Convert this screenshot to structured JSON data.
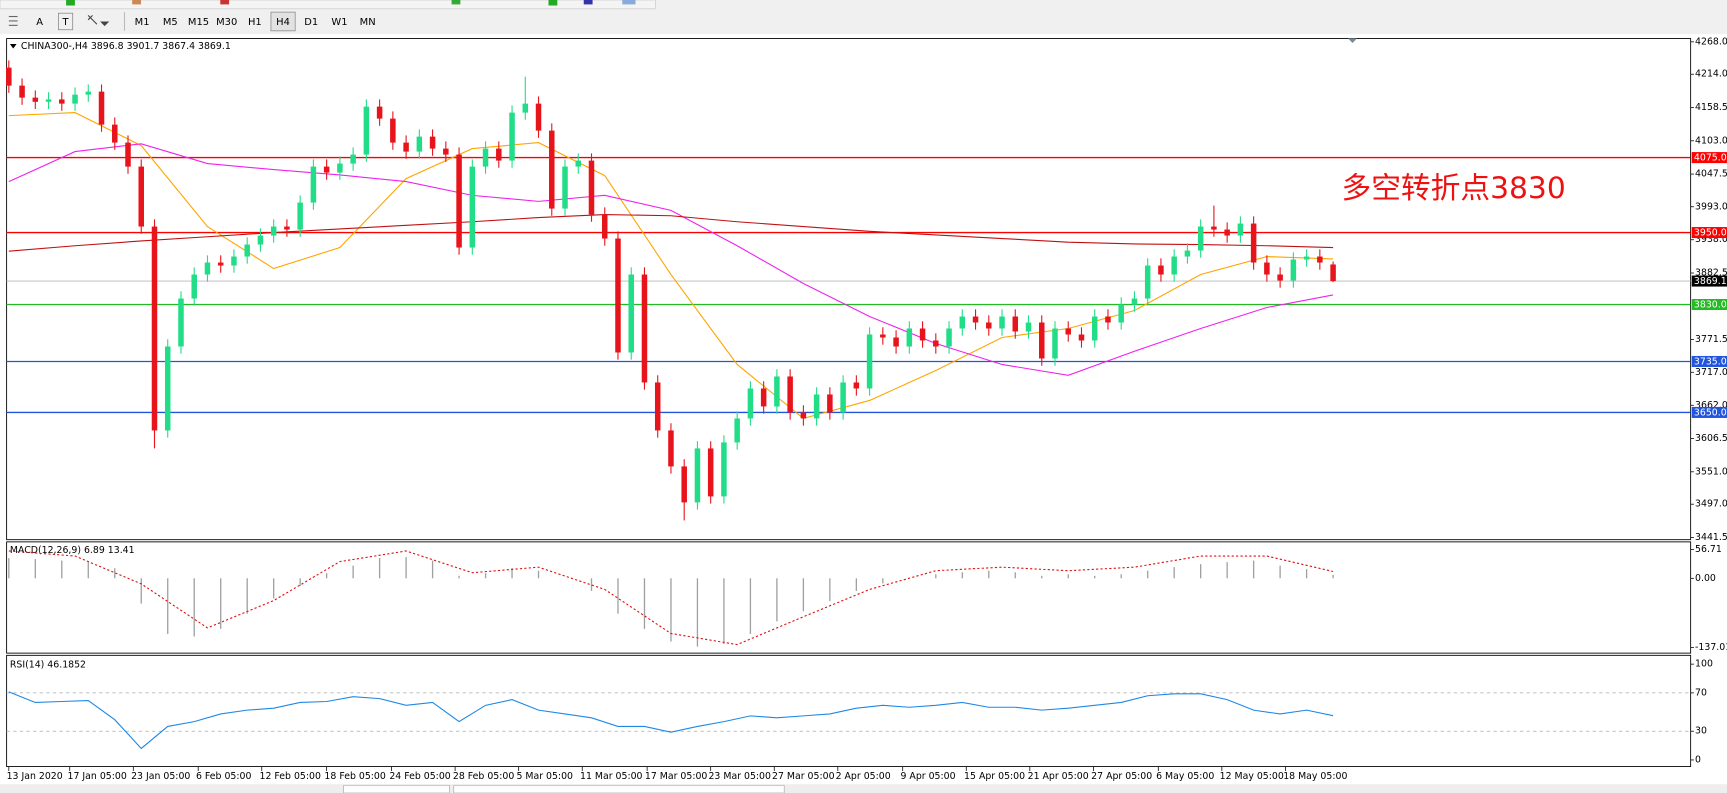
{
  "toolbar": {
    "tools": [
      "A",
      "T"
    ],
    "timeframes": [
      "M1",
      "M5",
      "M15",
      "M30",
      "H1",
      "H4",
      "D1",
      "W1",
      "MN"
    ],
    "active": "H4"
  },
  "chart_data": [
    {
      "type": "candlestick",
      "title": "CHINA300-,H4  3896.8 3901.7 3867.4 3869.1",
      "annotation": "多空转折点3830",
      "up_color": "#22dd88",
      "down_color": "#e8141c",
      "open": [
        4225,
        4195,
        4175,
        4168,
        4172,
        4165,
        4180,
        4185,
        4130,
        4100,
        4060,
        3960,
        3620,
        3760,
        3840,
        3880,
        3900,
        3895,
        3910,
        3930,
        3945,
        3960,
        3955,
        4000,
        4060,
        4050,
        4065,
        4080,
        4160,
        4140,
        4100,
        4085,
        4110,
        4090,
        4080,
        3925,
        4060,
        4090,
        4070,
        4150,
        4165,
        4120,
        3990,
        4060,
        4070,
        3980,
        3940,
        3750,
        3880,
        3700,
        3620,
        3560,
        3500,
        3590,
        3510,
        3600,
        3640,
        3690,
        3660,
        3710,
        3650,
        3640,
        3680,
        3650,
        3700,
        3690,
        3780,
        3775,
        3760,
        3790,
        3770,
        3760,
        3790,
        3810,
        3800,
        3790,
        3810,
        3785,
        3800,
        3740,
        3790,
        3780,
        3770,
        3810,
        3800,
        3830,
        3840,
        3895,
        3880,
        3910,
        3920,
        3960,
        3955,
        3945,
        3965,
        3900,
        3880,
        3870,
        3905,
        3910,
        3896.8
      ],
      "high": [
        4237,
        4207,
        4187,
        4184,
        4184,
        4192,
        4197,
        4197,
        4142,
        4112,
        4072,
        3972,
        3772,
        3852,
        3892,
        3912,
        3912,
        3922,
        3942,
        3957,
        3972,
        3972,
        4012,
        4072,
        4072,
        4077,
        4092,
        4172,
        4172,
        4152,
        4112,
        4122,
        4122,
        4102,
        4092,
        4072,
        4102,
        4102,
        4162,
        4210,
        4177,
        4132,
        4072,
        4082,
        4082,
        3992,
        3952,
        3892,
        3892,
        3712,
        3632,
        3572,
        3602,
        3602,
        3612,
        3652,
        3702,
        3702,
        3722,
        3722,
        3662,
        3692,
        3692,
        3712,
        3712,
        3792,
        3792,
        3787,
        3802,
        3802,
        3782,
        3802,
        3822,
        3822,
        3812,
        3822,
        3822,
        3812,
        3812,
        3802,
        3802,
        3792,
        3822,
        3822,
        3842,
        3852,
        3907,
        3907,
        3922,
        3932,
        3972,
        3995,
        3967,
        3977,
        3977,
        3912,
        3892,
        3917,
        3922,
        3922,
        3901.7
      ],
      "low": [
        4183,
        4163,
        4156,
        4156,
        4153,
        4153,
        4168,
        4118,
        4088,
        4048,
        3948,
        3590,
        3608,
        3748,
        3828,
        3868,
        3883,
        3883,
        3898,
        3918,
        3933,
        3943,
        3943,
        3988,
        4038,
        4038,
        4053,
        4068,
        4128,
        4088,
        4073,
        4073,
        4078,
        4068,
        3913,
        3913,
        4048,
        4058,
        4058,
        4138,
        4108,
        3978,
        3978,
        4048,
        3968,
        3928,
        3738,
        3738,
        3688,
        3608,
        3548,
        3470,
        3488,
        3498,
        3498,
        3588,
        3628,
        3648,
        3648,
        3638,
        3628,
        3628,
        3638,
        3638,
        3678,
        3678,
        3763,
        3748,
        3748,
        3758,
        3748,
        3748,
        3778,
        3788,
        3778,
        3778,
        3773,
        3773,
        3728,
        3728,
        3768,
        3758,
        3758,
        3788,
        3788,
        3818,
        3828,
        3868,
        3868,
        3898,
        3908,
        3943,
        3933,
        3933,
        3888,
        3868,
        3858,
        3858,
        3893,
        3888,
        3867.4
      ],
      "close": [
        4195,
        4175,
        4168,
        4172,
        4165,
        4180,
        4185,
        4130,
        4100,
        4060,
        3960,
        3620,
        3760,
        3840,
        3880,
        3900,
        3895,
        3910,
        3930,
        3945,
        3960,
        3955,
        4000,
        4060,
        4050,
        4065,
        4080,
        4160,
        4140,
        4100,
        4085,
        4110,
        4090,
        4080,
        3925,
        4060,
        4090,
        4070,
        4150,
        4165,
        4120,
        3990,
        4060,
        4070,
        3980,
        3940,
        3750,
        3880,
        3700,
        3620,
        3560,
        3500,
        3590,
        3510,
        3600,
        3640,
        3690,
        3660,
        3710,
        3650,
        3640,
        3680,
        3650,
        3700,
        3690,
        3780,
        3775,
        3760,
        3790,
        3770,
        3760,
        3790,
        3810,
        3800,
        3790,
        3810,
        3785,
        3800,
        3740,
        3790,
        3780,
        3770,
        3810,
        3800,
        3830,
        3840,
        3895,
        3880,
        3910,
        3920,
        3960,
        3955,
        3945,
        3965,
        3900,
        3880,
        3870,
        3905,
        3910,
        3900,
        3869.1
      ],
      "moving_averages": [
        {
          "color": "#ffa500",
          "x": [
            0,
            5,
            10,
            15,
            20,
            25,
            30,
            35,
            40,
            45,
            50,
            55,
            60,
            65,
            70,
            75,
            80,
            85,
            90,
            95,
            100
          ],
          "values": [
            4145,
            4150,
            4095,
            3960,
            3890,
            3925,
            4040,
            4090,
            4100,
            4045,
            3880,
            3730,
            3640,
            3670,
            3720,
            3775,
            3790,
            3820,
            3880,
            3910,
            3906
          ]
        },
        {
          "color": "#ee22ee",
          "x": [
            0,
            5,
            10,
            15,
            20,
            25,
            30,
            35,
            40,
            45,
            50,
            55,
            60,
            65,
            70,
            75,
            80,
            85,
            90,
            95,
            100
          ],
          "values": [
            4035,
            4085,
            4098,
            4065,
            4055,
            4046,
            4035,
            4012,
            4002,
            4012,
            3987,
            3928,
            3865,
            3810,
            3765,
            3730,
            3712,
            3752,
            3790,
            3825,
            3846
          ]
        },
        {
          "color": "#c01010",
          "x": [
            0,
            5,
            10,
            15,
            20,
            25,
            30,
            35,
            40,
            45,
            50,
            55,
            60,
            65,
            70,
            75,
            80,
            85,
            90,
            95,
            100
          ],
          "values": [
            3919,
            3928,
            3936,
            3943,
            3950,
            3956,
            3962,
            3968,
            3975,
            3980,
            3978,
            3968,
            3960,
            3952,
            3946,
            3940,
            3934,
            3931,
            3930,
            3928,
            3925
          ]
        }
      ],
      "levels": [
        {
          "value": 4075,
          "label": "4075.0",
          "color": "#ff0000"
        },
        {
          "value": 3950,
          "label": "3950.0",
          "color": "#ff0000"
        },
        {
          "value": 3869.1,
          "label": "3869.1",
          "color": "#000000",
          "line_color": "#b8b8b8"
        },
        {
          "value": 3830,
          "label": "3830.0",
          "color": "#22bb22"
        },
        {
          "value": 3735,
          "label": "3735.0",
          "color": "#2255dd"
        },
        {
          "value": 3650,
          "label": "3650.0",
          "color": "#2255dd"
        }
      ],
      "xlim": [
        0,
        127
      ],
      "xticks": [
        {
          "value": 0,
          "label": "13 Jan 2020"
        },
        {
          "value": 4.6,
          "label": "17 Jan 05:00"
        },
        {
          "value": 9.4,
          "label": "23 Jan 05:00"
        },
        {
          "value": 14.3,
          "label": "6 Feb 05:00"
        },
        {
          "value": 19.1,
          "label": "12 Feb 05:00"
        },
        {
          "value": 24,
          "label": "18 Feb 05:00"
        },
        {
          "value": 28.9,
          "label": "24 Feb 05:00"
        },
        {
          "value": 33.7,
          "label": "28 Feb 05:00"
        },
        {
          "value": 38.5,
          "label": "5 Mar 05:00"
        },
        {
          "value": 43.3,
          "label": "11 Mar 05:00"
        },
        {
          "value": 48.2,
          "label": "17 Mar 05:00"
        },
        {
          "value": 53,
          "label": "23 Mar 05:00"
        },
        {
          "value": 57.8,
          "label": "27 Mar 05:00"
        },
        {
          "value": 62.6,
          "label": "2 Apr 05:00"
        },
        {
          "value": 67.5,
          "label": "9 Apr 05:00"
        },
        {
          "value": 72.3,
          "label": "15 Apr 05:00"
        },
        {
          "value": 77.1,
          "label": "21 Apr 05:00"
        },
        {
          "value": 81.9,
          "label": "27 Apr 05:00"
        },
        {
          "value": 86.8,
          "label": "6 May 05:00"
        },
        {
          "value": 91.6,
          "label": "12 May 05:00"
        },
        {
          "value": 96.4,
          "label": "18 May 05:00"
        }
      ],
      "ylim": [
        3441.5,
        4268
      ],
      "yticks": [
        {
          "value": 4268,
          "label": "4268.0"
        },
        {
          "value": 4214,
          "label": "4214.0"
        },
        4158.5,
        {
          "value": 4103,
          "label": "4103.0"
        },
        4047.5,
        {
          "value": 3993,
          "label": "3993.0"
        },
        {
          "value": 3938,
          "label": "3938.0"
        },
        3882.5,
        3771.5,
        {
          "value": 3717,
          "label": "3717.0"
        },
        {
          "value": 3662,
          "label": "3662.0"
        },
        3606.5,
        {
          "value": 3551,
          "label": "3551.0"
        },
        {
          "value": 3497,
          "label": "3497.0"
        },
        3441.5
      ]
    },
    {
      "type": "macd",
      "title": "MACD(12,26,9) 6.89 13.41",
      "color": "#a0a0a0",
      "signal_color": "#dd1111",
      "x": [
        0,
        2,
        4,
        6,
        8,
        10,
        12,
        14,
        16,
        18,
        20,
        22,
        24,
        26,
        28,
        30,
        32,
        34,
        36,
        38,
        40,
        42,
        44,
        46,
        48,
        50,
        52,
        54,
        56,
        58,
        60,
        62,
        64,
        66,
        68,
        70,
        72,
        74,
        76,
        78,
        80,
        82,
        84,
        86,
        88,
        90,
        92,
        94,
        96,
        98,
        100
      ],
      "histogram": [
        40,
        38,
        35,
        32,
        20,
        -50,
        -110,
        -115,
        -100,
        -70,
        -40,
        -15,
        10,
        25,
        40,
        42,
        35,
        5,
        10,
        20,
        15,
        0,
        -25,
        -70,
        -100,
        -125,
        -135,
        -130,
        -110,
        -85,
        -65,
        -45,
        -25,
        -10,
        0,
        8,
        12,
        15,
        12,
        5,
        8,
        5,
        8,
        15,
        22,
        28,
        32,
        35,
        25,
        18,
        6.89
      ],
      "signal_x": [
        0,
        5,
        10,
        15,
        20,
        25,
        30,
        35,
        40,
        45,
        50,
        55,
        60,
        65,
        70,
        75,
        80,
        85,
        90,
        95,
        100
      ],
      "signal": [
        54,
        44,
        -11,
        -98,
        -44,
        33,
        54,
        11,
        22,
        -22,
        -109,
        -131,
        -76,
        -22,
        15,
        22,
        15,
        22,
        44,
        44,
        13.41
      ],
      "xlim": [
        0,
        127
      ],
      "ylim": [
        -145.7,
        69.8
      ],
      "yticks": [
        56.71,
        {
          "value": 0,
          "label": "0.00"
        },
        -137.01
      ]
    },
    {
      "type": "line",
      "title": "RSI(14) 46.1852",
      "color": "#1e88e5",
      "x": [
        0,
        2,
        4,
        6,
        8,
        10,
        12,
        14,
        16,
        18,
        20,
        22,
        24,
        26,
        28,
        30,
        32,
        34,
        36,
        38,
        40,
        42,
        44,
        46,
        48,
        50,
        52,
        54,
        56,
        58,
        60,
        62,
        64,
        66,
        68,
        70,
        72,
        74,
        76,
        78,
        80,
        82,
        84,
        86,
        88,
        90,
        92,
        94,
        96,
        98,
        100
      ],
      "values": [
        71,
        60,
        61,
        62,
        42,
        12,
        35,
        40,
        48,
        52,
        54,
        60,
        61,
        66,
        64,
        57,
        60,
        40,
        57,
        63,
        52,
        48,
        44,
        35,
        35,
        29,
        35,
        40,
        46,
        44,
        46,
        48,
        54,
        57,
        55,
        57,
        60,
        55,
        55,
        52,
        54,
        57,
        60,
        67,
        69,
        69,
        63,
        52,
        48,
        52,
        46.1852
      ],
      "levels": [
        70,
        30
      ],
      "xlim": [
        0,
        127
      ],
      "ylim": [
        -6.9,
        106.9
      ],
      "yticks": [
        100,
        70,
        30,
        0
      ]
    }
  ]
}
